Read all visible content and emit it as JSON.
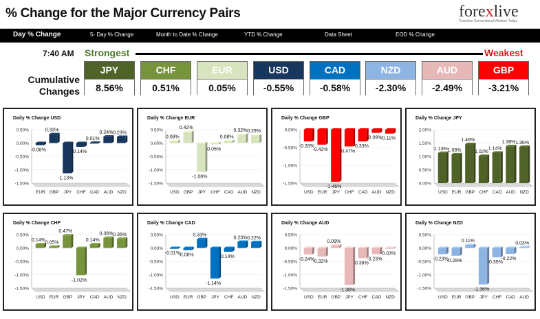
{
  "header": {
    "title": "% Change for the Major Currency Pairs",
    "logo_prefix": "fore",
    "logo_x": "x",
    "logo_suffix": "live",
    "logo_tagline": "Forexlive Conventional Wisdom Today"
  },
  "nav": [
    {
      "label": "Day % Change",
      "active": true
    },
    {
      "label": "5- Day % Change",
      "active": false
    },
    {
      "label": "Month to Date % Change",
      "active": false
    },
    {
      "label": "YTD % Change",
      "active": false
    },
    {
      "label": "Data Sheet",
      "active": false
    },
    {
      "label": "EOD % Change",
      "active": false
    }
  ],
  "summary": {
    "time": "7:40 AM",
    "strongest_label": "Strongest",
    "weakest_label": "Weakest",
    "cumulative_label_1": "Cumulative",
    "cumulative_label_2": "Changes",
    "currencies": [
      {
        "name": "JPY",
        "value": "8.56%",
        "color": "#4f6228"
      },
      {
        "name": "CHF",
        "value": "0.51%",
        "color": "#77933c"
      },
      {
        "name": "EUR",
        "value": "0.05%",
        "color": "#d7e4bd"
      },
      {
        "name": "USD",
        "value": "-0.55%",
        "color": "#17375e"
      },
      {
        "name": "CAD",
        "value": "-0.58%",
        "color": "#0070c0"
      },
      {
        "name": "NZD",
        "value": "-2.30%",
        "color": "#8eb4e3"
      },
      {
        "name": "AUD",
        "value": "-2.49%",
        "color": "#e6b9b8"
      },
      {
        "name": "GBP",
        "value": "-3.21%",
        "color": "#ff0000"
      }
    ]
  },
  "chart_data": [
    {
      "type": "bar",
      "title": "Daily % Change USD",
      "color": "#17375e",
      "categories": [
        "EUR",
        "GBP",
        "JPY",
        "CHF",
        "CAD",
        "AUD",
        "NZD"
      ],
      "values": [
        -0.08,
        0.33,
        -1.13,
        -0.14,
        0.01,
        0.24,
        0.23
      ],
      "ylim": [
        -1.5,
        0.5
      ],
      "yticks": [
        "0.50%",
        "0.00%",
        "-0.50%",
        "-1.00%",
        "-1.50%"
      ]
    },
    {
      "type": "bar",
      "title": "Daily % Change EUR",
      "color": "#d7e4bd",
      "categories": [
        "USD",
        "GBP",
        "JPY",
        "CHF",
        "CAD",
        "AUD",
        "NZD"
      ],
      "values": [
        0.08,
        0.42,
        -1.08,
        -0.05,
        0.08,
        0.32,
        0.29
      ],
      "ylim": [
        -1.5,
        0.5
      ],
      "yticks": [
        "0.50%",
        "0.00%",
        "-0.50%",
        "-1.00%",
        "-1.50%"
      ]
    },
    {
      "type": "bar",
      "title": "Daily % Change GBP",
      "color": "#ff0000",
      "categories": [
        "USD",
        "EUR",
        "JPY",
        "CHF",
        "CAD",
        "AUD",
        "NZD"
      ],
      "values": [
        -0.33,
        -0.42,
        -1.46,
        -0.47,
        -0.33,
        -0.09,
        -0.11
      ],
      "ylim": [
        -1.5,
        0.0
      ],
      "yticks": [
        "0.00%",
        "-0.50%",
        "-1.00%",
        "-1.50%"
      ]
    },
    {
      "type": "bar",
      "title": "Daily % Change JPY",
      "color": "#4f6228",
      "categories": [
        "USD",
        "EUR",
        "GBP",
        "CHF",
        "CAD",
        "AUD",
        "NZD"
      ],
      "values": [
        1.13,
        1.08,
        1.46,
        1.02,
        1.14,
        1.38,
        1.36
      ],
      "ylim": [
        0.0,
        2.0
      ],
      "yticks": [
        "2.00%",
        "1.50%",
        "1.00%",
        "0.50%",
        "0.00%"
      ]
    },
    {
      "type": "bar",
      "title": "Daily % Change CHF",
      "color": "#77933c",
      "categories": [
        "USD",
        "EUR",
        "GBP",
        "JPY",
        "CAD",
        "AUD",
        "NZD"
      ],
      "values": [
        0.14,
        0.05,
        0.47,
        -1.02,
        0.14,
        0.38,
        0.35
      ],
      "ylim": [
        -1.5,
        0.5
      ],
      "yticks": [
        "0.50%",
        "0.00%",
        "-0.50%",
        "-1.00%",
        "-1.50%"
      ]
    },
    {
      "type": "bar",
      "title": "Daily % Change CAD",
      "color": "#0070c0",
      "categories": [
        "USD",
        "EUR",
        "GBP",
        "JPY",
        "CHF",
        "AUD",
        "NZD"
      ],
      "values": [
        -0.01,
        -0.08,
        0.33,
        -1.14,
        -0.14,
        0.23,
        0.22
      ],
      "ylim": [
        -1.5,
        0.5
      ],
      "yticks": [
        "0.50%",
        "0.00%",
        "-0.50%",
        "-1.00%",
        "-1.50%"
      ]
    },
    {
      "type": "bar",
      "title": "Daily % Change AUD",
      "color": "#e6b9b8",
      "categories": [
        "USD",
        "EUR",
        "GBP",
        "JPY",
        "CHF",
        "CAD",
        "NZD"
      ],
      "values": [
        -0.24,
        -0.32,
        0.09,
        -1.38,
        -0.38,
        -0.23,
        -0.03
      ],
      "ylim": [
        -1.5,
        0.5
      ],
      "yticks": [
        "0.50%",
        "0.00%",
        "-0.50%",
        "-1.00%",
        "-1.50%"
      ]
    },
    {
      "type": "bar",
      "title": "Daily % Change NZD",
      "color": "#8eb4e3",
      "categories": [
        "USD",
        "EUR",
        "GBP",
        "JPY",
        "CHF",
        "CAD",
        "AUD"
      ],
      "values": [
        -0.23,
        -0.29,
        0.11,
        -1.36,
        -0.35,
        -0.22,
        0.03
      ],
      "ylim": [
        -1.5,
        0.5
      ],
      "yticks": [
        "0.50%",
        "0.00%",
        "-0.50%",
        "-1.00%",
        "-1.50%"
      ]
    }
  ]
}
